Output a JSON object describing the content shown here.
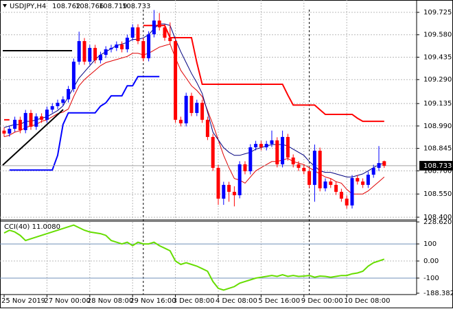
{
  "chart_data": [
    {
      "type": "candlestick",
      "symbol": "USDJPY,H4",
      "categories": [
        "25 Nov 2019",
        null,
        null,
        null,
        null,
        null,
        null,
        null,
        "27 Nov 00:00",
        null,
        null,
        null,
        null,
        null,
        null,
        null,
        "28 Nov 08:00",
        null,
        null,
        null,
        null,
        null,
        null,
        null,
        "29 Nov 16:00",
        null,
        null,
        null,
        null,
        null,
        null,
        null,
        "3 Dec 08:00",
        null,
        null,
        null,
        null,
        null,
        null,
        null,
        "4 Dec 08:00",
        null,
        null,
        null,
        null,
        null,
        null,
        null,
        "5 Dec 16:00",
        null,
        null,
        null,
        null,
        null,
        null,
        null,
        "9 Dec 00:00",
        null,
        null,
        null,
        null,
        null,
        null,
        null,
        "10 Dec 08:00",
        null,
        null,
        null,
        null,
        null,
        null,
        null
      ],
      "open": [
        108.96,
        108.941,
        108.972,
        109.03,
        108.963,
        109.074,
        108.985,
        109.052,
        109.03,
        109.096,
        109.118,
        109.14,
        109.162,
        109.229,
        109.406,
        109.539,
        109.406,
        109.495,
        109.415,
        109.45,
        109.486,
        109.495,
        109.517,
        109.486,
        109.561,
        109.628,
        109.539,
        109.428,
        109.583,
        109.672,
        109.628,
        109.561,
        109.539,
        109.03,
        109.007,
        109.185,
        109.074,
        109.14,
        109.03,
        108.919,
        108.719,
        108.52,
        108.609,
        108.564,
        108.542,
        108.742,
        108.697,
        108.852,
        108.874,
        108.852,
        108.874,
        108.897,
        108.742,
        108.919,
        108.786,
        108.742,
        108.719,
        108.697,
        108.609,
        108.83,
        108.587,
        108.631,
        108.609,
        108.564,
        108.52,
        108.476,
        108.653,
        108.631,
        108.609,
        108.675,
        108.719,
        108.762
      ],
      "high": [
        108.98,
        108.992,
        109.05,
        109.05,
        109.094,
        109.094,
        109.072,
        109.072,
        109.116,
        109.138,
        109.16,
        109.182,
        109.249,
        109.426,
        109.6,
        109.559,
        109.515,
        109.515,
        109.47,
        109.506,
        109.515,
        109.537,
        109.537,
        109.581,
        109.648,
        109.648,
        109.559,
        109.603,
        109.74,
        109.72,
        109.648,
        109.66,
        109.559,
        109.05,
        109.205,
        109.205,
        109.16,
        109.16,
        109.05,
        108.939,
        108.739,
        108.629,
        108.629,
        108.6,
        108.762,
        108.762,
        108.872,
        108.894,
        108.894,
        108.894,
        108.96,
        108.917,
        108.96,
        108.939,
        108.806,
        108.762,
        108.739,
        108.717,
        108.87,
        108.85,
        108.651,
        108.651,
        108.629,
        108.584,
        108.54,
        108.673,
        108.673,
        108.651,
        108.695,
        108.739,
        108.86,
        108.766
      ],
      "low": [
        108.921,
        108.921,
        108.952,
        108.943,
        108.943,
        108.965,
        108.965,
        109.01,
        109.01,
        109.076,
        109.098,
        109.12,
        109.142,
        109.209,
        109.386,
        109.386,
        109.386,
        109.395,
        109.395,
        109.43,
        109.466,
        109.475,
        109.466,
        109.466,
        109.541,
        109.519,
        109.408,
        109.408,
        109.563,
        109.608,
        109.541,
        109.519,
        109.01,
        108.987,
        108.987,
        109.054,
        109.054,
        109.01,
        108.899,
        108.699,
        108.48,
        108.48,
        108.5,
        108.47,
        108.522,
        108.677,
        108.677,
        108.832,
        108.832,
        108.832,
        108.854,
        108.722,
        108.722,
        108.766,
        108.722,
        108.699,
        108.677,
        108.589,
        108.5,
        108.567,
        108.567,
        108.589,
        108.544,
        108.5,
        108.456,
        108.456,
        108.611,
        108.589,
        108.589,
        108.655,
        108.699,
        108.719
      ],
      "close": [
        108.941,
        108.972,
        109.03,
        108.963,
        109.074,
        108.985,
        109.052,
        109.03,
        109.096,
        109.118,
        109.14,
        109.162,
        109.229,
        109.406,
        109.539,
        109.406,
        109.495,
        109.415,
        109.45,
        109.486,
        109.495,
        109.517,
        109.486,
        109.561,
        109.628,
        109.539,
        109.428,
        109.583,
        109.672,
        109.628,
        109.561,
        109.539,
        109.03,
        109.007,
        109.185,
        109.074,
        109.14,
        109.03,
        108.919,
        108.719,
        108.52,
        108.609,
        108.564,
        108.542,
        108.742,
        108.697,
        108.852,
        108.874,
        108.852,
        108.874,
        108.897,
        108.742,
        108.919,
        108.786,
        108.742,
        108.719,
        108.697,
        108.609,
        108.83,
        108.587,
        108.631,
        108.609,
        108.564,
        108.52,
        108.476,
        108.653,
        108.631,
        108.609,
        108.675,
        108.719,
        108.75,
        108.733
      ],
      "up_color": "#0000ff",
      "down_color": "#ff0000",
      "series": [
        {
          "color": "#ff0000",
          "width": 2,
          "values": [
            109.03,
            109.03,
            null,
            null,
            null,
            null,
            null,
            null,
            null,
            null,
            null,
            null,
            null,
            null,
            null,
            null,
            null,
            null,
            null,
            null,
            null,
            null,
            null,
            null,
            null,
            null,
            109.64,
            109.64,
            109.64,
            109.64,
            109.64,
            109.561,
            109.561,
            109.561,
            109.561,
            109.561,
            109.4,
            109.26,
            109.26,
            109.26,
            109.26,
            109.26,
            109.26,
            109.26,
            109.26,
            109.26,
            109.26,
            109.26,
            109.26,
            109.26,
            109.26,
            109.26,
            109.26,
            109.19,
            109.125,
            109.125,
            109.125,
            109.125,
            109.125,
            109.095,
            109.065,
            109.065,
            109.065,
            109.065,
            109.065,
            109.065,
            109.04,
            109.02,
            109.02,
            109.02,
            109.02,
            109.02
          ]
        },
        {
          "color": "#0000ff",
          "width": 2,
          "values": [
            null,
            108.705,
            108.705,
            108.705,
            108.705,
            108.705,
            108.705,
            108.705,
            108.705,
            108.705,
            108.8,
            109.0,
            109.075,
            109.075,
            109.075,
            109.075,
            109.075,
            109.075,
            109.118,
            109.14,
            109.185,
            109.185,
            109.185,
            109.25,
            109.25,
            109.31,
            109.31,
            109.31,
            109.31,
            109.31,
            null,
            null,
            null,
            null,
            null,
            null,
            null,
            null,
            null,
            null,
            null,
            null,
            null,
            null,
            null,
            null,
            null,
            null,
            null,
            null,
            null,
            null,
            null,
            null,
            null,
            null,
            null,
            null,
            null,
            null,
            null,
            null,
            null,
            null,
            null,
            null,
            null,
            null,
            null,
            null,
            null,
            null
          ]
        },
        {
          "color": "#e00000",
          "width": 1,
          "values": [
            108.92,
            108.93,
            108.95,
            108.96,
            108.98,
            108.99,
            109.0,
            109.02,
            109.03,
            109.05,
            109.07,
            109.08,
            109.1,
            109.18,
            109.25,
            109.29,
            109.32,
            109.35,
            109.38,
            109.4,
            109.41,
            109.42,
            109.43,
            109.44,
            109.46,
            109.46,
            109.45,
            109.46,
            109.48,
            109.5,
            109.51,
            109.52,
            109.43,
            109.35,
            109.3,
            109.25,
            109.22,
            109.18,
            109.09,
            109.0,
            108.9,
            108.8,
            108.72,
            108.65,
            108.64,
            108.62,
            108.66,
            108.7,
            108.72,
            108.74,
            108.76,
            108.76,
            108.77,
            108.78,
            108.76,
            108.75,
            108.74,
            108.72,
            108.7,
            108.68,
            108.66,
            108.65,
            108.63,
            108.62,
            108.58,
            108.55,
            108.55,
            108.55,
            108.57,
            108.6,
            108.63,
            108.66
          ]
        },
        {
          "color": "#00007f",
          "width": 1,
          "values": [
            108.98,
            108.99,
            109.0,
            109.0,
            109.02,
            109.02,
            109.03,
            109.04,
            109.05,
            109.07,
            109.09,
            109.12,
            109.18,
            109.24,
            109.3,
            109.34,
            109.38,
            109.42,
            109.45,
            109.47,
            109.49,
            109.51,
            109.52,
            109.53,
            109.55,
            109.55,
            109.56,
            109.58,
            109.62,
            109.65,
            109.65,
            109.64,
            109.55,
            109.47,
            109.4,
            109.33,
            109.27,
            109.2,
            109.08,
            108.95,
            108.9,
            108.85,
            108.82,
            108.8,
            108.8,
            108.81,
            108.82,
            108.84,
            108.85,
            108.86,
            108.87,
            108.87,
            108.87,
            108.86,
            108.84,
            108.82,
            108.8,
            108.76,
            108.73,
            108.7,
            108.69,
            108.69,
            108.68,
            108.67,
            108.66,
            108.66,
            108.67,
            108.68,
            108.7,
            108.72,
            108.74,
            108.75
          ]
        }
      ],
      "ylim": [
        108.387,
        109.796
      ],
      "yticks": [
        109.725,
        {
          "value": 109.58,
          "label": "109.580"
        },
        109.435,
        {
          "value": 109.29,
          "label": "109.290"
        },
        109.135,
        {
          "value": 108.99,
          "label": "108.990"
        },
        108.845,
        {
          "value": 108.7,
          "label": "108.700"
        },
        {
          "value": 108.55,
          "label": "108.550"
        },
        {
          "value": 108.4,
          "label": "108.400"
        }
      ],
      "grid": true
    },
    {
      "type": "line",
      "title": "CCI(40) 11.0080",
      "color": "#66dd00",
      "values": [
        164,
        180,
        170,
        150,
        120,
        130,
        140,
        150,
        160,
        170,
        180,
        190,
        200,
        210,
        195,
        180,
        170,
        165,
        160,
        150,
        120,
        110,
        100,
        110,
        90,
        110,
        100,
        100,
        110,
        90,
        75,
        60,
        0,
        -20,
        -10,
        -20,
        -30,
        -45,
        -60,
        -120,
        -160,
        -170,
        -160,
        -150,
        -130,
        -120,
        -110,
        -100,
        -95,
        -90,
        -85,
        -90,
        -80,
        -90,
        -85,
        -90,
        -88,
        -85,
        -95,
        -88,
        -90,
        -95,
        -90,
        -85,
        -85,
        -75,
        -70,
        -60,
        -30,
        -10,
        0,
        11.008
      ],
      "ylim": [
        -188.3827,
        228.6208
      ],
      "yticks": [
        228.6208,
        100,
        {
          "value": 0,
          "label": "0.00"
        },
        -100,
        -188.3827
      ],
      "levels_color": "#6f8fb8"
    }
  ]
}
